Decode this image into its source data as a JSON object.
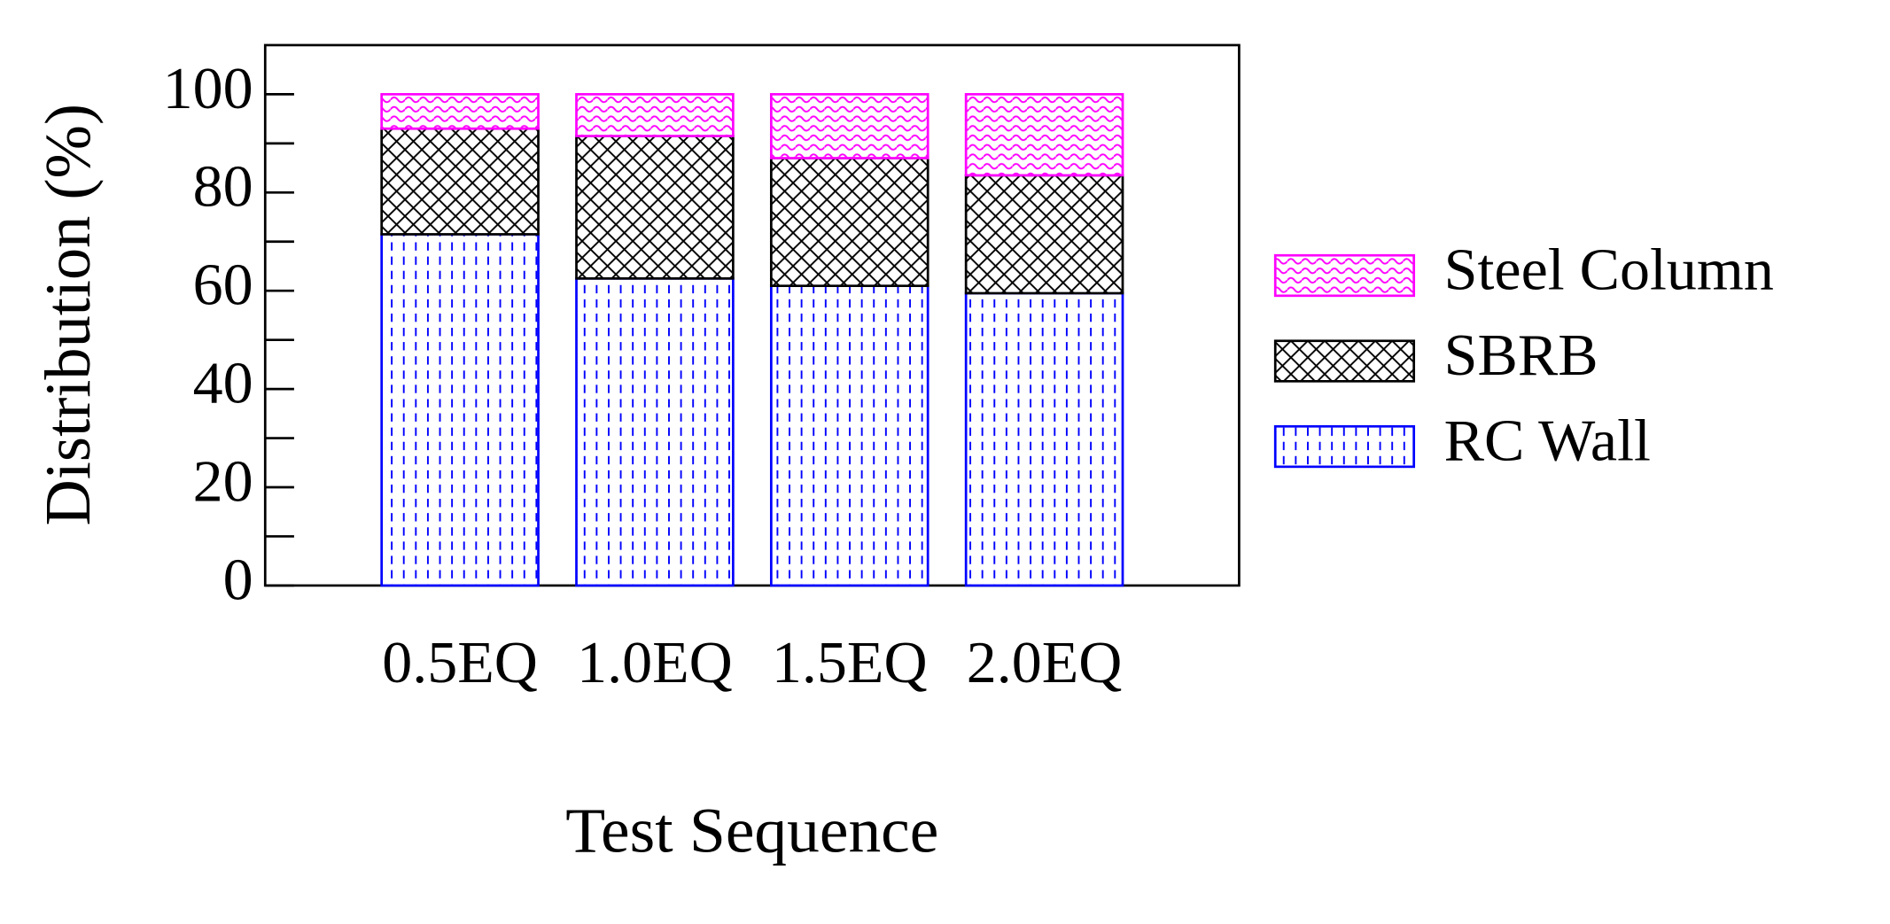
{
  "chart_data": {
    "type": "stacked_bar",
    "y_label": "Distribution (%)",
    "x_label": "Test Sequence",
    "categories": [
      "0.5EQ",
      "1.0EQ",
      "1.5EQ",
      "2.0EQ"
    ],
    "series": [
      {
        "name": "RC Wall",
        "color": "#0000ff",
        "values": [
          71.5,
          62.5,
          61,
          59.5
        ]
      },
      {
        "name": "SBRB",
        "color": "#000000",
        "values": [
          21.5,
          29,
          26,
          24
        ]
      },
      {
        "name": "Steel Column",
        "color": "#ff00ff",
        "values": [
          7,
          8.5,
          13,
          16.5
        ]
      }
    ],
    "ylim": [
      0,
      110
    ],
    "yticks": [
      0,
      20,
      40,
      60,
      80,
      100
    ],
    "minor_yticks": [
      10,
      30,
      50,
      70,
      90
    ],
    "legend": "right"
  }
}
